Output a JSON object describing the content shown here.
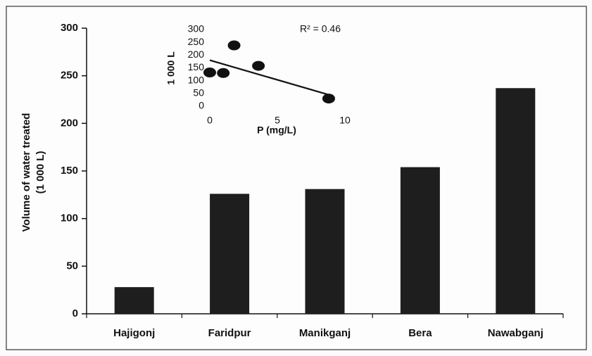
{
  "chart_data": [
    {
      "type": "bar",
      "ylabel": [
        "Volume of water treated",
        "(1 000 L)"
      ],
      "categories": [
        "Hajigonj",
        "Faridpur",
        "Manikganj",
        "Bera",
        "Nawabganj"
      ],
      "values": [
        28,
        126,
        131,
        154,
        237
      ],
      "color": "#1e1e1e",
      "ylim": [
        0,
        300
      ],
      "yticks": [
        0,
        50,
        100,
        150,
        200,
        250,
        300
      ],
      "grid": false
    },
    {
      "type": "scatter",
      "xlabel": "P (mg/L)",
      "ylabel": "1 000 L",
      "annotation": "R² = 0.46",
      "x": [
        0,
        1,
        1.8,
        3.6,
        8.8
      ],
      "values": [
        132,
        130,
        238,
        158,
        30
      ],
      "color": "#111111",
      "trendline": {
        "x": [
          0,
          8.8
        ],
        "y": [
          180,
          45
        ]
      },
      "xlim": [
        0,
        10
      ],
      "xticks": [
        0,
        5,
        10
      ],
      "ylim": [
        0,
        300
      ],
      "yticks": [
        0,
        50,
        100,
        150,
        200,
        250,
        300
      ]
    }
  ]
}
